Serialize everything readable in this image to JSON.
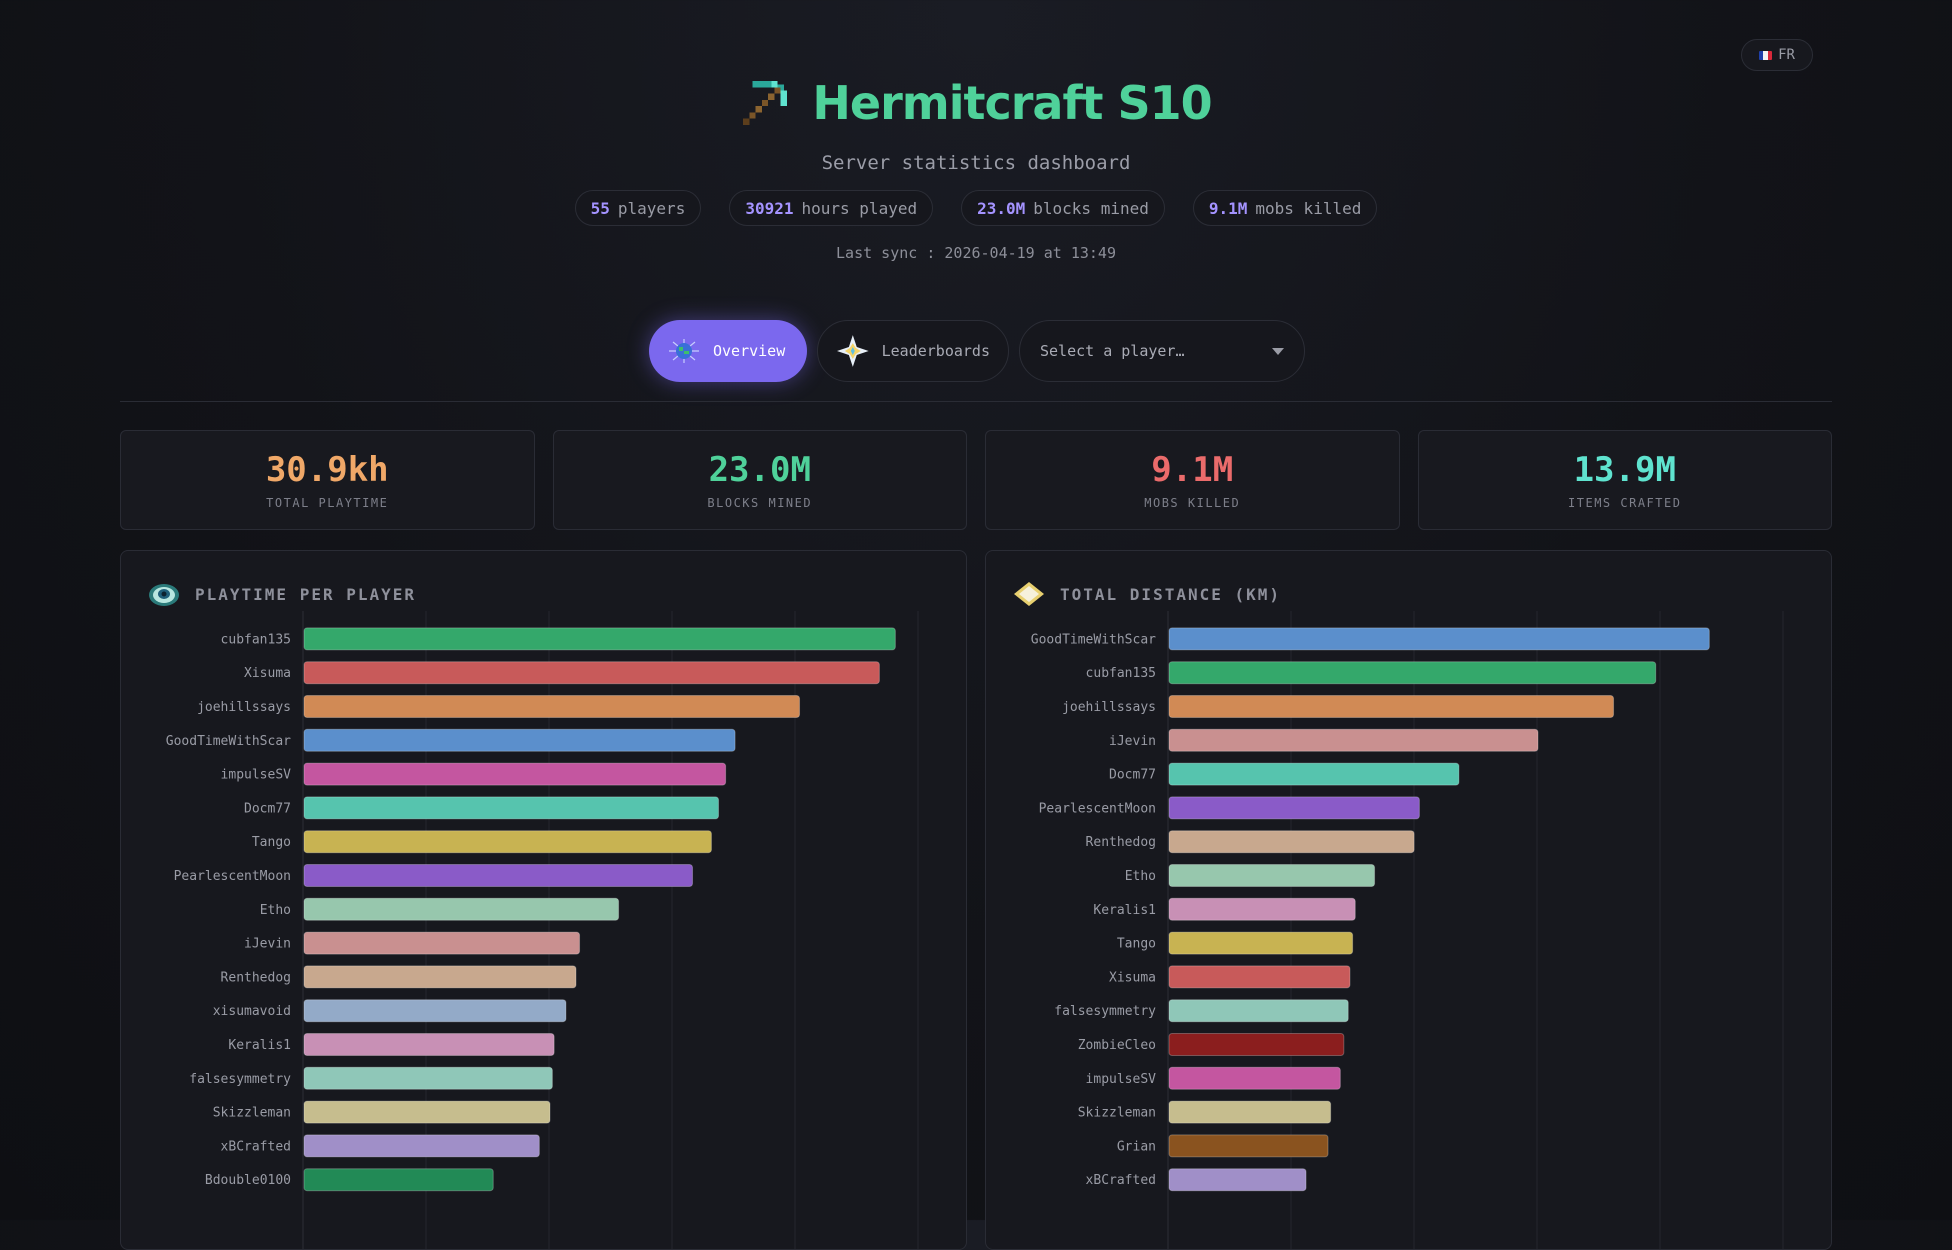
{
  "language": {
    "code": "FR",
    "flag_colors": [
      "#1f3fa8",
      "#f2f2f2",
      "#d8283a"
    ]
  },
  "header": {
    "title": "Hermitcraft S10",
    "subtitle": "Server statistics dashboard",
    "icon": "pickaxe-icon"
  },
  "summary_pills": [
    {
      "value": "55",
      "label": "players"
    },
    {
      "value": "30921",
      "label": "hours played"
    },
    {
      "value": "23.0M",
      "label": "blocks mined"
    },
    {
      "value": "9.1M",
      "label": "mobs killed"
    }
  ],
  "last_sync": "Last sync : 2026-04-19 at 13:49",
  "nav": {
    "overview": {
      "label": "Overview",
      "icon": "globe-icon"
    },
    "leaderboards": {
      "label": "Leaderboards",
      "icon": "nether-star-icon"
    },
    "player_select": {
      "placeholder": "Select a player…"
    }
  },
  "stat_cards": [
    {
      "value": "30.9kh",
      "label": "TOTAL PLAYTIME",
      "color": "#f0a868"
    },
    {
      "value": "23.0M",
      "label": "BLOCKS MINED",
      "color": "#4fd19a"
    },
    {
      "value": "9.1M",
      "label": "MOBS KILLED",
      "color": "#ea6b6b"
    },
    {
      "value": "13.9M",
      "label": "ITEMS CRAFTED",
      "color": "#5fe3cf"
    }
  ],
  "panels": {
    "playtime": {
      "title": "PLAYTIME PER PLAYER",
      "icon": "ender-eye-icon"
    },
    "distance": {
      "title": "TOTAL DISTANCE (KM)",
      "icon": "map-icon"
    }
  },
  "chart_data": [
    {
      "type": "bar",
      "orientation": "horizontal",
      "title": "PLAYTIME PER PLAYER",
      "categories": [
        "cubfan135",
        "Xisuma",
        "joehillssays",
        "GoodTimeWithScar",
        "impulseSV",
        "Docm77",
        "Tango",
        "PearlescentMoon",
        "Etho",
        "iJevin",
        "Renthedog",
        "xisumavoid",
        "Keralis1",
        "falsesymmetry",
        "Skizzleman",
        "xBCrafted",
        "Bdouble0100"
      ],
      "values": [
        1000,
        973,
        838,
        729,
        713,
        701,
        689,
        657,
        532,
        466,
        460,
        443,
        423,
        420,
        416,
        398,
        320
      ],
      "colors": [
        "#34a86b",
        "#c85a5a",
        "#d18a55",
        "#5b8fcc",
        "#c456a0",
        "#56c4ae",
        "#c8b352",
        "#8a5bc8",
        "#97c7ad",
        "#c99090",
        "#c8a88e",
        "#93aac8",
        "#c890b5",
        "#8fc7b8",
        "#c6bd8e",
        "#a08fc8",
        "#228a56"
      ],
      "xlim": [
        0,
        1040
      ],
      "grid": true
    },
    {
      "type": "bar",
      "orientation": "horizontal",
      "title": "TOTAL DISTANCE (KM)",
      "categories": [
        "GoodTimeWithScar",
        "cubfan135",
        "joehillssays",
        "iJevin",
        "Docm77",
        "PearlescentMoon",
        "Renthedog",
        "Etho",
        "Keralis1",
        "Tango",
        "Xisuma",
        "falsesymmetry",
        "ZombieCleo",
        "impulseSV",
        "Skizzleman",
        "Grian",
        "xBCrafted"
      ],
      "values": [
        6150,
        5540,
        5060,
        4200,
        3300,
        2850,
        2790,
        2340,
        2120,
        2090,
        2060,
        2040,
        1990,
        1950,
        1840,
        1810,
        1560
      ],
      "colors": [
        "#5b8fcc",
        "#34a86b",
        "#d18a55",
        "#c99090",
        "#56c4ae",
        "#8a5bc8",
        "#c8a88e",
        "#97c7ad",
        "#c890b5",
        "#c8b352",
        "#c85a5a",
        "#8fc7b8",
        "#8b1e1e",
        "#c456a0",
        "#c6bd8e",
        "#8a531f",
        "#a08fc8"
      ],
      "xlim": [
        0,
        7000
      ],
      "grid": true
    }
  ]
}
